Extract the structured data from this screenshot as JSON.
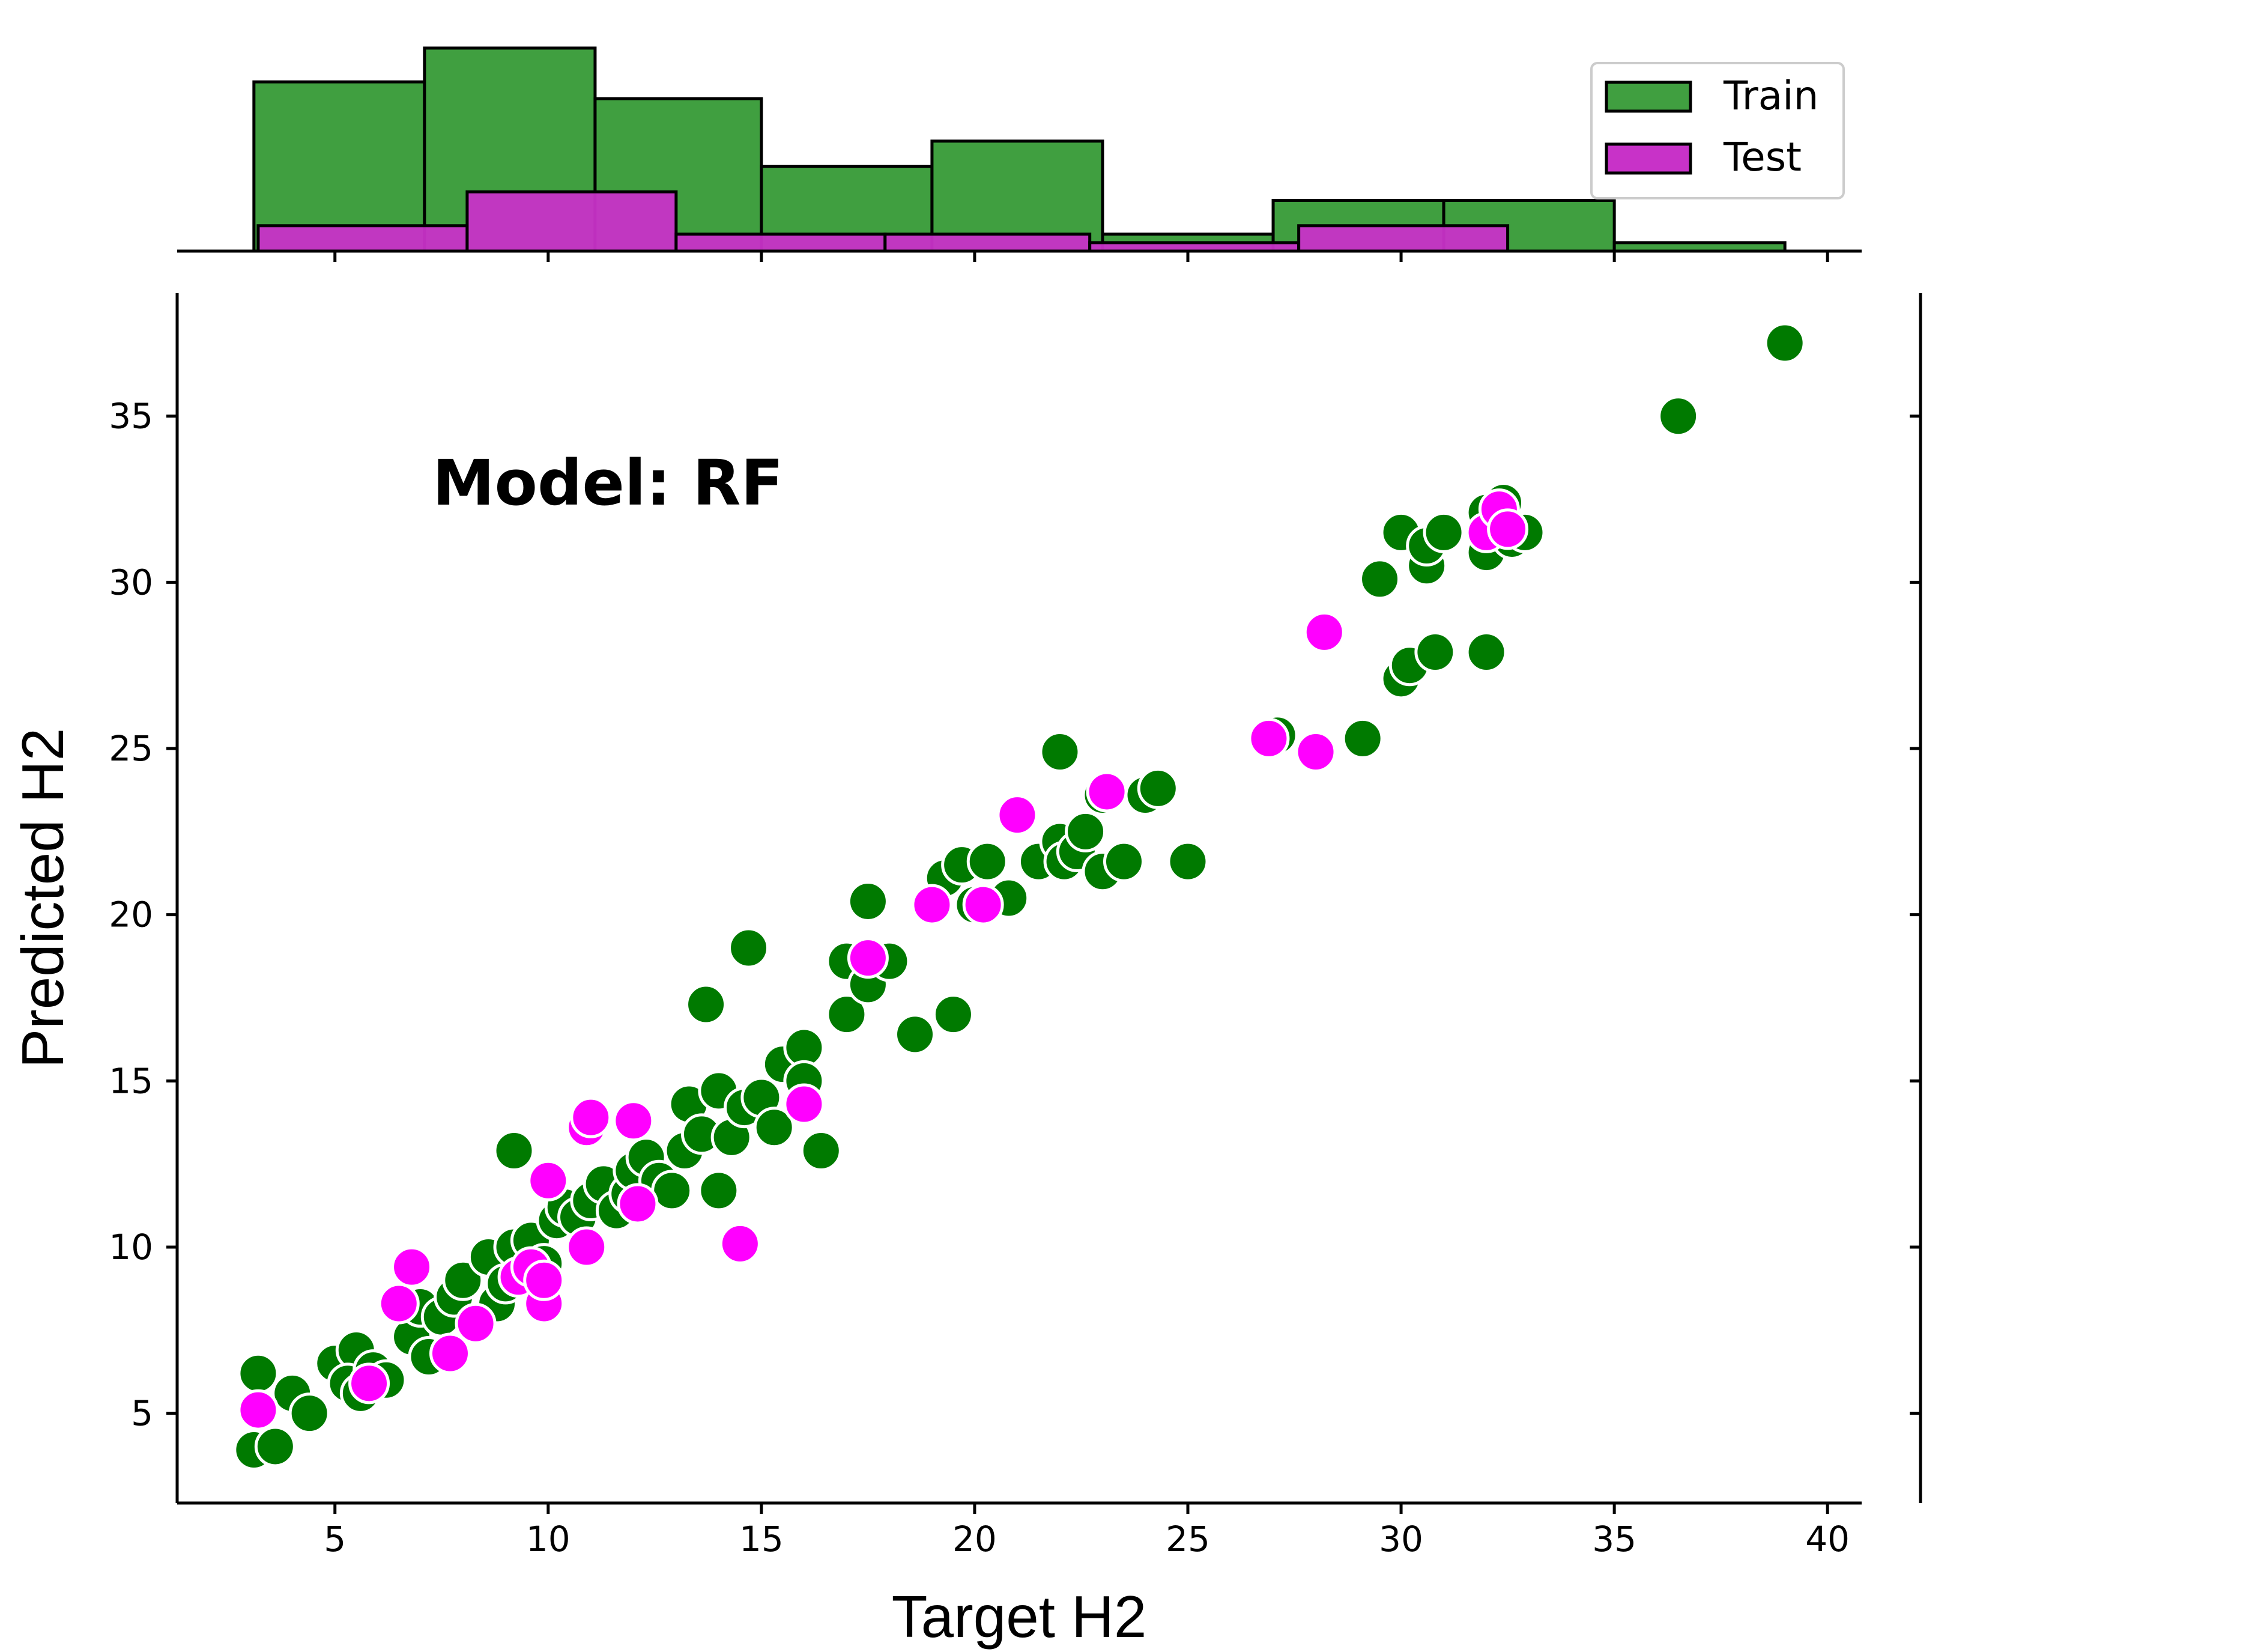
{
  "chart_data": {
    "type": "scatter",
    "annotation": "Model: RF",
    "xlabel": "Target H2",
    "ylabel": "Predicted H2",
    "xlim": [
      1.3,
      40.8
    ],
    "ylim": [
      2.3,
      38.7
    ],
    "xticks": [
      5,
      10,
      15,
      20,
      25,
      30,
      35,
      40
    ],
    "yticks": [
      5,
      10,
      15,
      20,
      25,
      30,
      35
    ],
    "colors": {
      "train": "#007a00",
      "test": "#ff00ff",
      "train_hist": "#409f40",
      "test_hist": "#c832c8"
    },
    "legend": {
      "position": "top-right",
      "entries": [
        "Train",
        "Test"
      ]
    },
    "series": [
      {
        "name": "Train",
        "points": [
          [
            3.1,
            3.9
          ],
          [
            3.2,
            6.2
          ],
          [
            3.6,
            4.0
          ],
          [
            4.0,
            5.6
          ],
          [
            4.4,
            5.0
          ],
          [
            5.0,
            6.5
          ],
          [
            5.5,
            6.9
          ],
          [
            5.3,
            5.9
          ],
          [
            5.6,
            5.6
          ],
          [
            5.9,
            6.3
          ],
          [
            6.2,
            6.0
          ],
          [
            6.8,
            7.3
          ],
          [
            7.0,
            8.2
          ],
          [
            7.2,
            6.7
          ],
          [
            7.5,
            7.9
          ],
          [
            7.8,
            8.5
          ],
          [
            8.0,
            9.0
          ],
          [
            8.3,
            7.7
          ],
          [
            8.6,
            9.7
          ],
          [
            8.8,
            8.3
          ],
          [
            9.0,
            8.9
          ],
          [
            9.2,
            10.0
          ],
          [
            9.2,
            12.9
          ],
          [
            9.6,
            10.2
          ],
          [
            9.9,
            9.5
          ],
          [
            10.2,
            10.8
          ],
          [
            10.4,
            11.2
          ],
          [
            10.7,
            10.9
          ],
          [
            11.0,
            11.4
          ],
          [
            11.3,
            11.9
          ],
          [
            11.6,
            11.1
          ],
          [
            11.9,
            11.6
          ],
          [
            12.0,
            12.3
          ],
          [
            12.3,
            12.7
          ],
          [
            12.6,
            12.0
          ],
          [
            12.9,
            11.7
          ],
          [
            13.2,
            12.9
          ],
          [
            13.3,
            14.3
          ],
          [
            13.6,
            13.4
          ],
          [
            13.7,
            17.3
          ],
          [
            14.0,
            14.7
          ],
          [
            14.0,
            11.7
          ],
          [
            14.3,
            13.3
          ],
          [
            14.6,
            14.2
          ],
          [
            14.7,
            19.0
          ],
          [
            15.0,
            14.5
          ],
          [
            15.3,
            13.6
          ],
          [
            15.5,
            15.5
          ],
          [
            16.0,
            16.0
          ],
          [
            16.0,
            15.0
          ],
          [
            16.4,
            12.9
          ],
          [
            17.0,
            17.0
          ],
          [
            17.0,
            18.6
          ],
          [
            17.5,
            17.9
          ],
          [
            17.5,
            20.4
          ],
          [
            18.0,
            18.6
          ],
          [
            18.6,
            16.4
          ],
          [
            19.3,
            21.1
          ],
          [
            19.5,
            17.0
          ],
          [
            19.7,
            21.5
          ],
          [
            20.0,
            20.3
          ],
          [
            20.3,
            21.6
          ],
          [
            20.8,
            20.5
          ],
          [
            21.5,
            21.6
          ],
          [
            22.0,
            22.2
          ],
          [
            22.0,
            24.9
          ],
          [
            22.1,
            21.6
          ],
          [
            22.4,
            21.9
          ],
          [
            22.6,
            22.5
          ],
          [
            23.0,
            21.3
          ],
          [
            23.0,
            23.6
          ],
          [
            23.5,
            21.6
          ],
          [
            24.0,
            23.6
          ],
          [
            24.3,
            23.8
          ],
          [
            25.0,
            21.6
          ],
          [
            27.1,
            25.4
          ],
          [
            29.1,
            25.3
          ],
          [
            29.5,
            30.1
          ],
          [
            30.0,
            31.5
          ],
          [
            30.0,
            27.1
          ],
          [
            30.2,
            27.5
          ],
          [
            30.6,
            30.5
          ],
          [
            30.6,
            31.1
          ],
          [
            30.8,
            27.9
          ],
          [
            31.0,
            31.5
          ],
          [
            32.0,
            27.9
          ],
          [
            32.0,
            30.9
          ],
          [
            32.0,
            32.1
          ],
          [
            32.4,
            32.4
          ],
          [
            32.6,
            31.3
          ],
          [
            32.9,
            31.5
          ],
          [
            36.5,
            35.0
          ],
          [
            39.0,
            37.2
          ]
        ]
      },
      {
        "name": "Test",
        "points": [
          [
            3.2,
            5.1
          ],
          [
            5.8,
            5.9
          ],
          [
            6.5,
            8.3
          ],
          [
            6.8,
            9.4
          ],
          [
            7.7,
            6.8
          ],
          [
            8.3,
            7.7
          ],
          [
            9.3,
            9.1
          ],
          [
            9.6,
            9.4
          ],
          [
            9.9,
            8.3
          ],
          [
            9.9,
            9.0
          ],
          [
            10.0,
            12.0
          ],
          [
            10.9,
            10.0
          ],
          [
            10.9,
            13.6
          ],
          [
            11.0,
            13.9
          ],
          [
            12.0,
            13.8
          ],
          [
            12.1,
            11.3
          ],
          [
            14.5,
            10.1
          ],
          [
            16.0,
            14.3
          ],
          [
            17.5,
            18.7
          ],
          [
            19.0,
            20.3
          ],
          [
            20.2,
            20.3
          ],
          [
            21.0,
            23.0
          ],
          [
            23.1,
            23.7
          ],
          [
            26.9,
            25.3
          ],
          [
            28.0,
            24.9
          ],
          [
            28.2,
            28.5
          ],
          [
            32.0,
            31.5
          ],
          [
            32.3,
            32.2
          ],
          [
            32.5,
            31.6
          ]
        ]
      }
    ],
    "histograms": [
      {
        "name": "Train",
        "bins": [
          [
            3.1,
            7.1,
            20
          ],
          [
            7.1,
            11.1,
            24
          ],
          [
            11.1,
            15.0,
            18
          ],
          [
            15.0,
            19.0,
            10
          ],
          [
            19.0,
            23.0,
            13
          ],
          [
            23.0,
            27.0,
            2
          ],
          [
            27.0,
            31.0,
            6
          ],
          [
            31.0,
            35.0,
            6
          ],
          [
            35.0,
            39.0,
            1
          ]
        ]
      },
      {
        "name": "Test",
        "bins": [
          [
            3.2,
            8.1,
            3
          ],
          [
            8.1,
            13.0,
            7
          ],
          [
            13.0,
            17.9,
            2
          ],
          [
            17.9,
            22.7,
            2
          ],
          [
            22.7,
            27.6,
            1
          ],
          [
            27.6,
            32.5,
            3
          ]
        ]
      }
    ]
  }
}
